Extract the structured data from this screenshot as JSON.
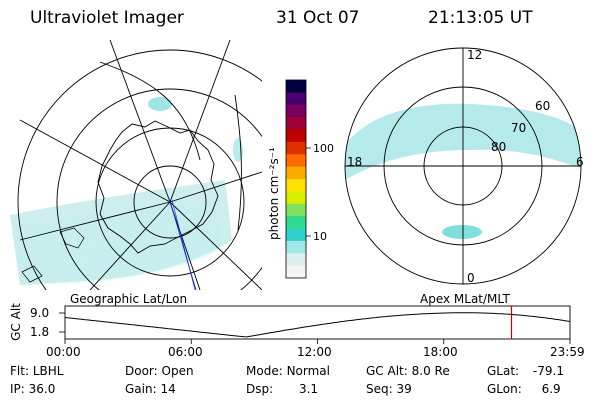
{
  "header": {
    "instrument": "Ultraviolet Imager",
    "date": "31 Oct 07",
    "time": "21:13:05 UT"
  },
  "colorbar": {
    "unit": "photon cm⁻²s⁻¹",
    "tick_labels": [
      "100",
      "10"
    ],
    "colors": [
      "#000040",
      "#4b0070",
      "#7a0060",
      "#a0003a",
      "#c00000",
      "#e03000",
      "#ff6a00",
      "#ffaa00",
      "#ffe000",
      "#d8f000",
      "#80e060",
      "#30d890",
      "#30d0c8",
      "#a0e8e8",
      "#dceeee",
      "#f4f4f4"
    ]
  },
  "geo_panel": {
    "label": "Geographic Lat/Lon"
  },
  "mlt_panel": {
    "label": "Apex  MLat/MLT",
    "mlt_labels": {
      "top": "12",
      "left": "18",
      "right": "6",
      "bottom": "0"
    },
    "lat_labels": [
      "60",
      "70",
      "80"
    ]
  },
  "alt_plot": {
    "ylabel": "GC Alt",
    "y_ticks": [
      "9.0",
      "1.8"
    ],
    "x_ticks": [
      "00:00",
      "06:00",
      "12:00",
      "18:00",
      "23:59"
    ],
    "marker_time_hours": 21.22,
    "marker_color": "#cc0000"
  },
  "status": {
    "row1": [
      {
        "label": "Flt:",
        "value": "LBHL"
      },
      {
        "label": "Door:",
        "value": "Open"
      },
      {
        "label": "Mode:",
        "value": "Normal"
      },
      {
        "label": "GC Alt:",
        "value": "8.0 Re"
      },
      {
        "label": "GLat:",
        "value": "-79.1"
      }
    ],
    "row2": [
      {
        "label": "IP:",
        "value": "36.0"
      },
      {
        "label": "Gain:",
        "value": "14"
      },
      {
        "label": "Dsp:",
        "value": "3.1"
      },
      {
        "label": "Seq:",
        "value": "39"
      },
      {
        "label": "GLon:",
        "value": "6.9"
      }
    ]
  }
}
